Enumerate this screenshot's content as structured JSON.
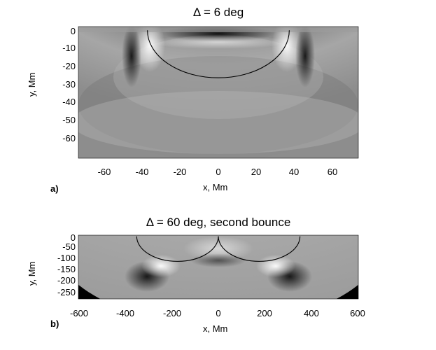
{
  "panel_a": {
    "title": "Δ = 6 deg",
    "tag": "a)",
    "xlabel": "x, Mm",
    "ylabel": "y, Mm",
    "x_ticks": [
      "-60",
      "-40",
      "-20",
      "0",
      "20",
      "40",
      "60"
    ],
    "y_ticks": [
      "0",
      "-10",
      "-20",
      "-30",
      "-40",
      "-50",
      "-60"
    ]
  },
  "panel_b": {
    "title": "Δ = 60 deg, second bounce",
    "tag": "b)",
    "xlabel": "x, Mm",
    "ylabel": "y, Mm",
    "x_ticks": [
      "-600",
      "-400",
      "-200",
      "0",
      "200",
      "400",
      "600"
    ],
    "y_ticks": [
      "0",
      "-50",
      "-100",
      "-150",
      "-200",
      "-250"
    ]
  },
  "chart_data": [
    {
      "type": "heatmap",
      "title": "Δ = 6 deg",
      "xlabel": "x, Mm",
      "ylabel": "y, Mm",
      "xlim": [
        -73,
        73
      ],
      "ylim": [
        -70,
        2
      ],
      "ray_path": {
        "x_start": -37,
        "x_end": 37,
        "depth": -26
      }
    },
    {
      "type": "heatmap",
      "title": "Δ = 60 deg, second bounce",
      "xlabel": "x, Mm",
      "ylabel": "y, Mm",
      "xlim": [
        -600,
        600
      ],
      "ylim": [
        -275,
        5
      ],
      "ray_paths": [
        {
          "x_start": -350,
          "x_end": 0,
          "depth": -110
        },
        {
          "x_start": 0,
          "x_end": 350,
          "depth": -110
        }
      ]
    }
  ]
}
